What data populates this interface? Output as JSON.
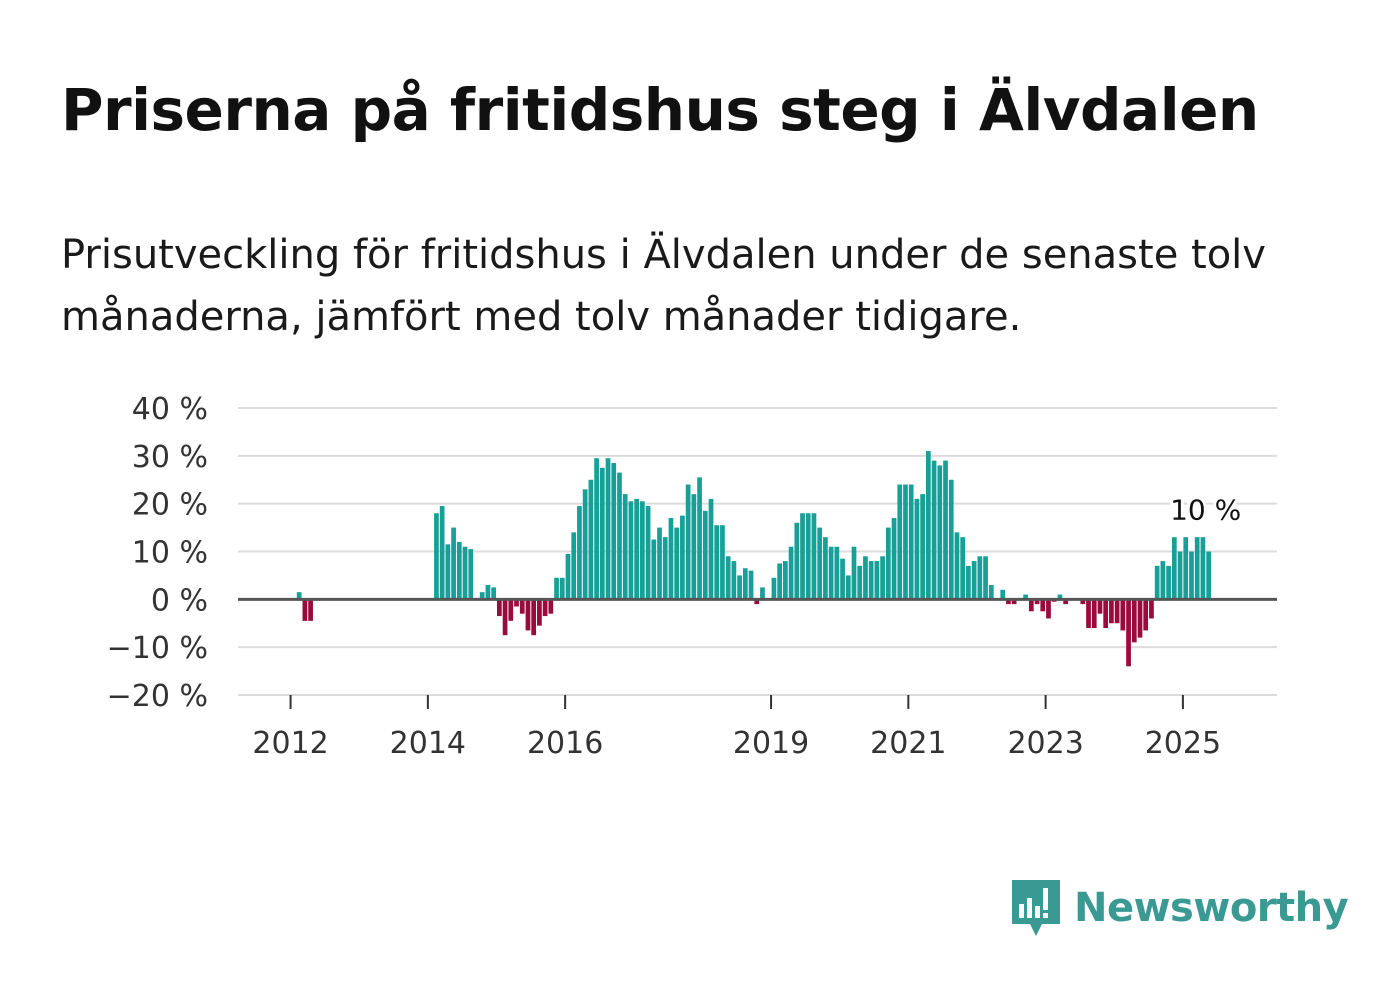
{
  "title": "Priserna på fritidshus steg i Älvdalen",
  "subtitle": "Prisutveckling för fritidshus i Älvdalen under de senaste tolv månaderna, jämfört med tolv månader tidigare.",
  "brand": {
    "name": "Newsworthy",
    "color": "#3a9a93",
    "icon": "bar-chart-speech-bubble-icon"
  },
  "colors": {
    "positive": "#18a098",
    "negative": "#9b0a3c",
    "grid": "#dcdcdc",
    "baseline": "#555555"
  },
  "chart_data": {
    "type": "bar",
    "title": "Priserna på fritidshus steg i Älvdalen",
    "xlabel": "",
    "ylabel": "",
    "ylim": [
      -20,
      40
    ],
    "y_ticks": [
      40,
      30,
      20,
      10,
      0,
      -10,
      -20
    ],
    "y_tick_labels": [
      "40 %",
      "30 %",
      "20 %",
      "10 %",
      "0 %",
      "−10 %",
      "−20 %"
    ],
    "x_ticks": [
      {
        "label": "2012",
        "year": 2012
      },
      {
        "label": "2014",
        "year": 2014
      },
      {
        "label": "2016",
        "year": 2016
      },
      {
        "label": "2019",
        "year": 2019
      },
      {
        "label": "2021",
        "year": 2021
      },
      {
        "label": "2023",
        "year": 2023
      },
      {
        "label": "2025",
        "year": 2025
      }
    ],
    "start": "2011-11",
    "end": "2025-09",
    "series_note": "Monthly values, one per month from start",
    "values": [
      0,
      0,
      0,
      1.5,
      -4.5,
      -4.5,
      0,
      0,
      0,
      0,
      0,
      0,
      0,
      0,
      0,
      0,
      0,
      0,
      0,
      0,
      0,
      0,
      0,
      0,
      0,
      0,
      0,
      18,
      19.5,
      11.5,
      15,
      12,
      11,
      10.5,
      0,
      1.5,
      3,
      2.5,
      -3.5,
      -7.5,
      -4.5,
      -1.5,
      -3,
      -6.5,
      -7.5,
      -5.5,
      -3.5,
      -3,
      4.5,
      4.5,
      9.5,
      14,
      19.5,
      23,
      25,
      29.5,
      27.5,
      29.5,
      28.5,
      26.5,
      22,
      20.5,
      21,
      20.5,
      19.5,
      12.5,
      15,
      13,
      17,
      15,
      17.5,
      24,
      22,
      25.5,
      18.5,
      21,
      15.5,
      15.5,
      9,
      8,
      5,
      6.5,
      6,
      -1,
      2.5,
      0,
      4.5,
      7.5,
      8,
      11,
      16,
      18,
      18,
      18,
      15,
      13,
      11,
      11,
      8.5,
      5,
      11,
      7,
      9,
      8,
      8,
      9,
      15,
      17,
      24,
      24,
      24,
      21,
      22,
      31,
      29,
      28,
      29,
      25,
      14,
      13,
      7,
      8,
      9,
      9,
      3,
      0,
      2,
      -1,
      -1,
      0,
      1,
      -2.5,
      -1,
      -2.5,
      -4,
      -0.5,
      1,
      -1,
      0,
      0,
      -1,
      -6,
      -6,
      -3,
      -6,
      -5,
      -5,
      -6.5,
      -14,
      -9,
      -8,
      -6.5,
      -4,
      7,
      8,
      7,
      13,
      10,
      13,
      10,
      13,
      13,
      10
    ],
    "annotation": {
      "text": "10 %",
      "target": "last"
    }
  }
}
